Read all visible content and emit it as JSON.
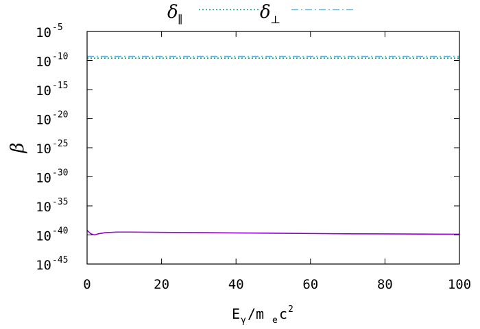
{
  "chart_data": {
    "type": "line",
    "title": "",
    "xlabel": {
      "base": "E",
      "sub1": "γ",
      "mid": "/m",
      "sub2": "e",
      "tail": "c",
      "sup": "2"
    },
    "ylabel": "β",
    "xlim": [
      0,
      100
    ],
    "ylim_log10": [
      -45,
      -5
    ],
    "y_scale": "log",
    "x_ticks": [
      "0",
      "20",
      "40",
      "60",
      "80",
      "100"
    ],
    "x_tick_values": [
      0,
      20,
      40,
      60,
      80,
      100
    ],
    "y_ticks": [
      {
        "base": "10",
        "exp": "-5",
        "value": -5
      },
      {
        "base": "10",
        "exp": "-10",
        "value": -10
      },
      {
        "base": "10",
        "exp": "-15",
        "value": -15
      },
      {
        "base": "10",
        "exp": "-20",
        "value": -20
      },
      {
        "base": "10",
        "exp": "-25",
        "value": -25
      },
      {
        "base": "10",
        "exp": "-30",
        "value": -30
      },
      {
        "base": "10",
        "exp": "-35",
        "value": -35
      },
      {
        "base": "10",
        "exp": "-40",
        "value": -40
      },
      {
        "base": "10",
        "exp": "-45",
        "value": -45
      }
    ],
    "legend_position": "top, outside plot",
    "series": [
      {
        "name": "δ∥",
        "legend_base": "δ",
        "legend_sub": "∥",
        "color": "#00a060",
        "style": "dotted",
        "x": [
          0,
          100
        ],
        "log10_y": [
          -9.6,
          -9.6
        ]
      },
      {
        "name": "δ⊥",
        "legend_base": "δ",
        "legend_sub": "⊥",
        "color": "#56b4e9",
        "style": "dash-dot",
        "x": [
          0,
          100
        ],
        "log10_y": [
          -9.3,
          -9.3
        ]
      },
      {
        "name": "",
        "color": "#9400d3",
        "style": "solid",
        "x": [
          0,
          1,
          2,
          3,
          5,
          8,
          12,
          20,
          30,
          40,
          50,
          60,
          70,
          80,
          90,
          100
        ],
        "log10_y": [
          -39.2,
          -39.8,
          -40.0,
          -39.8,
          -39.6,
          -39.5,
          -39.5,
          -39.55,
          -39.6,
          -39.65,
          -39.7,
          -39.75,
          -39.8,
          -39.82,
          -39.85,
          -39.88
        ]
      }
    ]
  }
}
